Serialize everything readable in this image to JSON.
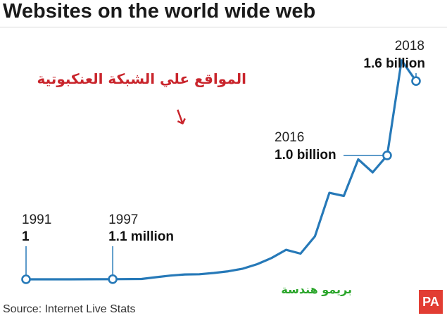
{
  "header": {
    "title": "Websites on the world wide web"
  },
  "annotation_ar": "المواقع علي الشبكة العنكبوتية",
  "annotation_arrow": "↓",
  "watermark_ar": "بريمو هندسة",
  "source": "Source: Internet Live Stats",
  "logo": "PA",
  "colors": {
    "line": "#2679b8",
    "accent_red": "#c9252c",
    "watermark_green": "#2aa52a",
    "logo_red": "#e23d33"
  },
  "chart_data": {
    "type": "line",
    "title": "Websites on the world wide web",
    "xlabel": "",
    "ylabel": "",
    "xlim": [
      1991,
      2018
    ],
    "ylim": [
      0,
      1.8
    ],
    "units": "billion websites",
    "grid": false,
    "legend": "none",
    "series": [
      {
        "x": [
          1991,
          1994,
          1997,
          1999,
          2000,
          2001,
          2002,
          2003,
          2004,
          2005,
          2006,
          2007,
          2008,
          2009,
          2010,
          2011,
          2012,
          2013,
          2014,
          2015,
          2016,
          2017,
          2018
        ],
        "values": [
          1e-09,
          3e-05,
          0.0011,
          0.003,
          0.017,
          0.03,
          0.039,
          0.041,
          0.051,
          0.065,
          0.086,
          0.122,
          0.172,
          0.238,
          0.207,
          0.347,
          0.698,
          0.673,
          0.968,
          0.863,
          1.0,
          1.767,
          1.6
        ]
      }
    ],
    "callouts": [
      {
        "year": "1991",
        "value": "1",
        "x": 1991,
        "y": 1e-09,
        "label_side": "above"
      },
      {
        "year": "1997",
        "value": "1.1 million",
        "x": 1997,
        "y": 0.0011,
        "label_side": "above"
      },
      {
        "year": "2016",
        "value": "1.0 billion",
        "x": 2016,
        "y": 1.0,
        "label_side": "left"
      },
      {
        "year": "2018",
        "value": "1.6 billion",
        "x": 2018,
        "y": 1.6,
        "label_side": "above-left"
      }
    ]
  }
}
